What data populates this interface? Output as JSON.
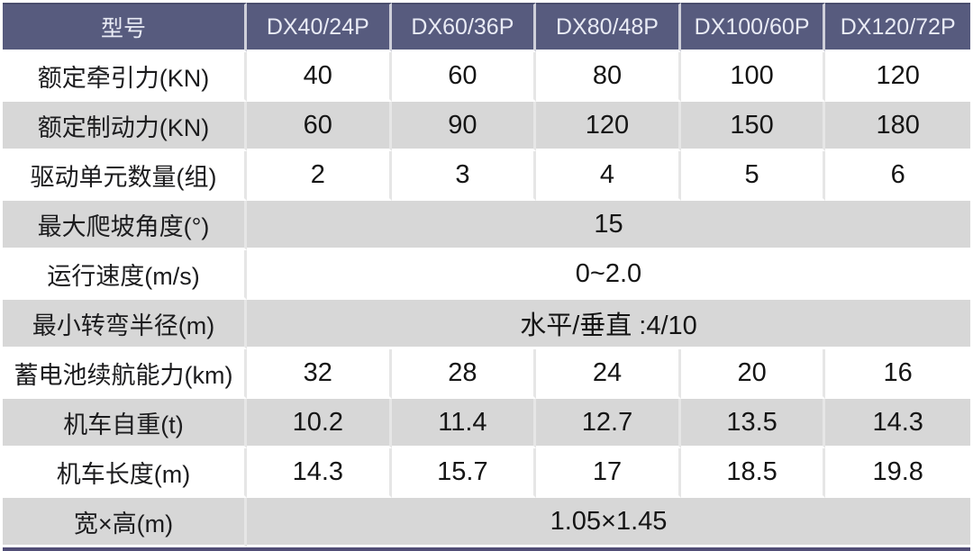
{
  "chart_data": {
    "type": "table",
    "title": "",
    "corner_header": "型号",
    "columns": [
      "DX40/24P",
      "DX60/36P",
      "DX80/48P",
      "DX100/60P",
      "DX120/72P"
    ],
    "rows": [
      {
        "label": "额定牵引力(KN)",
        "values": [
          "40",
          "60",
          "80",
          "100",
          "120"
        ]
      },
      {
        "label": "额定制动力(KN)",
        "values": [
          "60",
          "90",
          "120",
          "150",
          "180"
        ]
      },
      {
        "label": "驱动单元数量(组)",
        "values": [
          "2",
          "3",
          "4",
          "5",
          "6"
        ]
      },
      {
        "label": "最大爬坡角度(°)",
        "values": [
          "15"
        ],
        "span": true
      },
      {
        "label": "运行速度(m/s)",
        "values": [
          "0~2.0"
        ],
        "span": true
      },
      {
        "label": "最小转弯半径(m)",
        "values": [
          "水平/垂直 :4/10"
        ],
        "span": true
      },
      {
        "label": "蓄电池续航能力(km)",
        "values": [
          "32",
          "28",
          "24",
          "20",
          "16"
        ]
      },
      {
        "label": "机车自重(t)",
        "values": [
          "10.2",
          "11.4",
          "12.7",
          "13.5",
          "14.3"
        ]
      },
      {
        "label": "机车长度(m)",
        "values": [
          "14.3",
          "15.7",
          "17",
          "18.5",
          "19.8"
        ]
      },
      {
        "label": "宽×高(m)",
        "values": [
          "1.05×1.45"
        ],
        "span": true
      }
    ],
    "layout_hints": {
      "striped": true,
      "stripe_pattern": [
        "white",
        "gray"
      ],
      "merged_value_rows": [
        3,
        4,
        5,
        9
      ]
    },
    "colors": {
      "header_bg": "#575b7e",
      "header_text": "#e9ebf5",
      "stripe_gray": "#d7d7d7",
      "row_white": "#ffffff",
      "body_text": "#1c1c1e",
      "bottom_border": "#514e76"
    }
  }
}
